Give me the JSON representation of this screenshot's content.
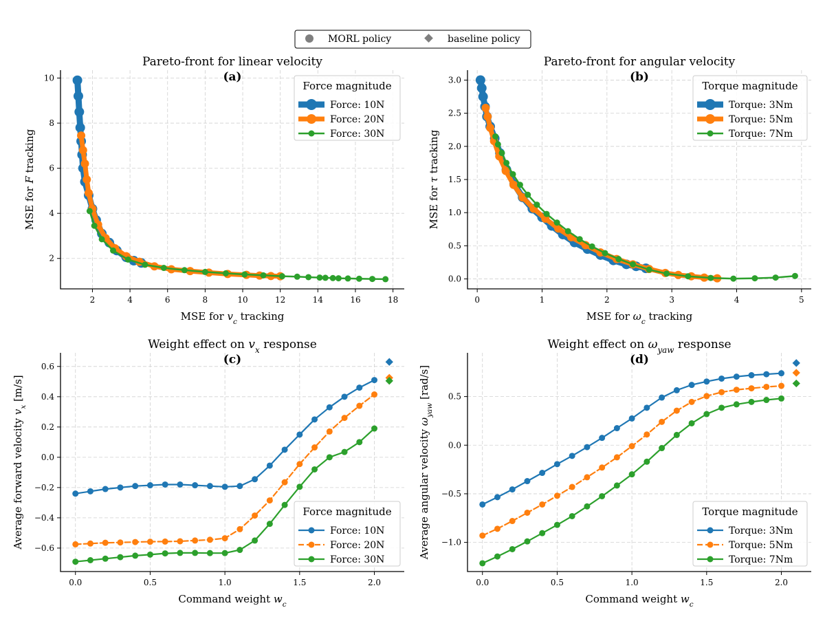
{
  "legend_top": {
    "items": [
      {
        "label": "MORL policy",
        "marker": "circle",
        "color": "#7f7f7f"
      },
      {
        "label": "baseline policy",
        "marker": "diamond",
        "color": "#7f7f7f"
      }
    ]
  },
  "chart_data": [
    {
      "id": "a",
      "type": "line",
      "title": "Pareto-front for linear velocity",
      "panel_letter": "(a)",
      "xlabel": "MSE for v_c tracking",
      "ylabel": "MSE for F tracking",
      "xlim": [
        0.3,
        18.6
      ],
      "ylim": [
        0.65,
        10.35
      ],
      "xticks": [
        2,
        4,
        6,
        8,
        10,
        12,
        14,
        16,
        18
      ],
      "yticks": [
        2,
        4,
        6,
        8,
        10
      ],
      "grid": true,
      "legend_title": "Force magnitude",
      "legend_position": "top-right",
      "series": [
        {
          "name": "Force: 10N",
          "color": "#1f77b4",
          "lw": 9,
          "ms": 7,
          "dash": false,
          "x": [
            1.2,
            1.25,
            1.3,
            1.35,
            1.4,
            1.45,
            1.5,
            1.6,
            1.8,
            2.0,
            2.2,
            2.5,
            2.9,
            3.3,
            3.8,
            4.2,
            4.6
          ],
          "y": [
            9.9,
            9.2,
            8.5,
            7.8,
            7.2,
            6.6,
            6.0,
            5.4,
            4.8,
            4.2,
            3.7,
            3.1,
            2.7,
            2.35,
            2.05,
            1.9,
            1.8
          ]
        },
        {
          "name": "Force: 20N",
          "color": "#ff7f0e",
          "lw": 7,
          "ms": 6,
          "dash": false,
          "x": [
            1.4,
            1.5,
            1.6,
            1.7,
            1.8,
            2.0,
            2.3,
            2.7,
            3.2,
            3.8,
            4.5,
            5.3,
            6.2,
            7.2,
            8.2,
            9.2,
            10.2,
            10.9,
            11.5,
            12.0
          ],
          "y": [
            7.45,
            6.8,
            6.2,
            5.5,
            4.9,
            4.2,
            3.5,
            2.9,
            2.45,
            2.1,
            1.85,
            1.65,
            1.52,
            1.44,
            1.37,
            1.31,
            1.27,
            1.24,
            1.22,
            1.21
          ]
        },
        {
          "name": "Force: 30N",
          "color": "#2ca02c",
          "lw": 2.5,
          "ms": 4.5,
          "dash": false,
          "x": [
            1.85,
            2.1,
            2.5,
            3.1,
            3.9,
            4.8,
            5.8,
            6.9,
            8.0,
            9.1,
            10.1,
            11.1,
            12.1,
            12.9,
            13.5,
            14.1,
            14.4,
            14.8,
            15.1,
            15.6,
            16.2,
            16.9,
            17.6
          ],
          "y": [
            4.1,
            3.45,
            2.85,
            2.35,
            1.95,
            1.72,
            1.58,
            1.48,
            1.4,
            1.34,
            1.29,
            1.25,
            1.21,
            1.19,
            1.17,
            1.15,
            1.14,
            1.13,
            1.12,
            1.11,
            1.1,
            1.09,
            1.08
          ]
        }
      ]
    },
    {
      "id": "b",
      "type": "line",
      "title": "Pareto-front for angular velocity",
      "panel_letter": "(b)",
      "xlabel": "MSE for ω_c tracking",
      "ylabel": "MSE for τ tracking",
      "xlim": [
        -0.15,
        5.15
      ],
      "ylim": [
        -0.15,
        3.15
      ],
      "xticks": [
        0,
        1,
        2,
        3,
        4,
        5
      ],
      "yticks": [
        0.0,
        0.5,
        1.0,
        1.5,
        2.0,
        2.5,
        3.0
      ],
      "ytick_decimals": 1,
      "grid": true,
      "legend_title": "Torque magnitude",
      "legend_position": "top-right",
      "series": [
        {
          "name": "Torque: 3Nm",
          "color": "#1f77b4",
          "lw": 9,
          "ms": 7,
          "dash": false,
          "x": [
            0.05,
            0.07,
            0.09,
            0.12,
            0.15,
            0.2,
            0.27,
            0.35,
            0.45,
            0.57,
            0.7,
            0.85,
            1.0,
            1.15,
            1.32,
            1.5,
            1.7,
            1.9,
            2.1,
            2.3,
            2.45,
            2.6
          ],
          "y": [
            3.0,
            2.88,
            2.75,
            2.6,
            2.45,
            2.3,
            2.12,
            1.9,
            1.65,
            1.43,
            1.23,
            1.06,
            0.93,
            0.8,
            0.67,
            0.55,
            0.45,
            0.36,
            0.28,
            0.22,
            0.19,
            0.16
          ]
        },
        {
          "name": "Torque: 5Nm",
          "color": "#ff7f0e",
          "lw": 7,
          "ms": 6,
          "dash": false,
          "x": [
            0.13,
            0.16,
            0.2,
            0.26,
            0.34,
            0.44,
            0.56,
            0.7,
            0.87,
            1.05,
            1.25,
            1.45,
            1.67,
            1.9,
            2.15,
            2.4,
            2.65,
            2.9,
            3.1,
            3.3,
            3.5,
            3.7
          ],
          "y": [
            2.58,
            2.45,
            2.28,
            2.08,
            1.85,
            1.63,
            1.42,
            1.23,
            1.06,
            0.91,
            0.76,
            0.63,
            0.51,
            0.4,
            0.3,
            0.22,
            0.15,
            0.09,
            0.06,
            0.04,
            0.02,
            0.01
          ]
        },
        {
          "name": "Torque: 7Nm",
          "color": "#2ca02c",
          "lw": 2.5,
          "ms": 4.5,
          "dash": false,
          "x": [
            0.28,
            0.32,
            0.38,
            0.45,
            0.55,
            0.66,
            0.78,
            0.92,
            1.07,
            1.23,
            1.4,
            1.58,
            1.77,
            1.97,
            2.18,
            2.4,
            2.65,
            2.92,
            3.25,
            3.6,
            3.95,
            4.28,
            4.6,
            4.9
          ],
          "y": [
            2.15,
            2.03,
            1.9,
            1.75,
            1.58,
            1.42,
            1.27,
            1.12,
            0.98,
            0.85,
            0.72,
            0.6,
            0.49,
            0.39,
            0.3,
            0.22,
            0.14,
            0.08,
            0.04,
            0.015,
            0.005,
            0.01,
            0.02,
            0.045
          ]
        }
      ]
    },
    {
      "id": "c",
      "type": "line",
      "title": "Weight effect on v_x response",
      "panel_letter": "(c)",
      "xlabel": "Command weight w_c",
      "ylabel": "Average forward velocity v_x [m/s]",
      "xlim": [
        -0.1,
        2.2
      ],
      "ylim": [
        -0.755,
        0.69
      ],
      "xticks": [
        0.0,
        0.5,
        1.0,
        1.5,
        2.0
      ],
      "xtick_decimals": 1,
      "yticks": [
        -0.6,
        -0.4,
        -0.2,
        0.0,
        0.2,
        0.4,
        0.6
      ],
      "ytick_decimals": 1,
      "grid": true,
      "legend_title": "Force magnitude",
      "legend_position": "bottom-right",
      "x": [
        0.0,
        0.1,
        0.2,
        0.3,
        0.4,
        0.5,
        0.6,
        0.7,
        0.8,
        0.9,
        1.0,
        1.1,
        1.2,
        1.3,
        1.4,
        1.5,
        1.6,
        1.7,
        1.8,
        1.9,
        2.0
      ],
      "series": [
        {
          "name": "Force: 10N",
          "color": "#1f77b4",
          "lw": 2.2,
          "ms": 4.5,
          "dash": false,
          "values": [
            -0.24,
            -0.225,
            -0.21,
            -0.2,
            -0.19,
            -0.185,
            -0.18,
            -0.18,
            -0.185,
            -0.19,
            -0.195,
            -0.19,
            -0.145,
            -0.055,
            0.05,
            0.15,
            0.25,
            0.33,
            0.4,
            0.46,
            0.51
          ],
          "baseline": 0.63
        },
        {
          "name": "Force: 20N",
          "color": "#ff7f0e",
          "lw": 2.2,
          "ms": 4.5,
          "dash": true,
          "values": [
            -0.575,
            -0.57,
            -0.565,
            -0.563,
            -0.56,
            -0.558,
            -0.557,
            -0.555,
            -0.55,
            -0.545,
            -0.535,
            -0.475,
            -0.385,
            -0.285,
            -0.165,
            -0.045,
            0.065,
            0.17,
            0.26,
            0.34,
            0.415
          ],
          "baseline": 0.525
        },
        {
          "name": "Force: 30N",
          "color": "#2ca02c",
          "lw": 2.2,
          "ms": 4.5,
          "dash": false,
          "values": [
            -0.69,
            -0.68,
            -0.67,
            -0.66,
            -0.65,
            -0.643,
            -0.635,
            -0.632,
            -0.632,
            -0.633,
            -0.633,
            -0.612,
            -0.55,
            -0.44,
            -0.315,
            -0.195,
            -0.08,
            0.0,
            0.035,
            0.1,
            0.19
          ],
          "baseline": 0.505
        }
      ]
    },
    {
      "id": "d",
      "type": "line",
      "title": "Weight effect on ω_yaw response",
      "panel_letter": "(d)",
      "xlabel": "Command weight w_c",
      "ylabel": "Average angular velocity ω_yaw [rad/s]",
      "xlim": [
        -0.1,
        2.2
      ],
      "ylim": [
        -1.3,
        0.95
      ],
      "xticks": [
        0.0,
        0.5,
        1.0,
        1.5,
        2.0
      ],
      "xtick_decimals": 1,
      "yticks": [
        -1.0,
        -0.5,
        0.0,
        0.5
      ],
      "ytick_decimals": 1,
      "grid": true,
      "legend_title": "Torque magnitude",
      "legend_position": "bottom-right",
      "x": [
        0.0,
        0.1,
        0.2,
        0.3,
        0.4,
        0.5,
        0.6,
        0.7,
        0.8,
        0.9,
        1.0,
        1.1,
        1.2,
        1.3,
        1.4,
        1.5,
        1.6,
        1.7,
        1.8,
        1.9,
        2.0
      ],
      "series": [
        {
          "name": "Torque: 3Nm",
          "color": "#1f77b4",
          "lw": 2.2,
          "ms": 4.5,
          "dash": false,
          "values": [
            -0.61,
            -0.535,
            -0.455,
            -0.37,
            -0.285,
            -0.195,
            -0.11,
            -0.02,
            0.075,
            0.175,
            0.275,
            0.385,
            0.49,
            0.565,
            0.62,
            0.655,
            0.685,
            0.705,
            0.72,
            0.73,
            0.74
          ],
          "baseline": 0.845
        },
        {
          "name": "Torque: 5Nm",
          "color": "#ff7f0e",
          "lw": 2.2,
          "ms": 4.5,
          "dash": true,
          "values": [
            -0.93,
            -0.86,
            -0.78,
            -0.695,
            -0.61,
            -0.52,
            -0.43,
            -0.33,
            -0.23,
            -0.125,
            -0.01,
            0.11,
            0.24,
            0.355,
            0.445,
            0.505,
            0.545,
            0.57,
            0.585,
            0.6,
            0.61
          ],
          "baseline": 0.745
        },
        {
          "name": "Torque: 7Nm",
          "color": "#2ca02c",
          "lw": 2.2,
          "ms": 4.5,
          "dash": false,
          "values": [
            -1.215,
            -1.145,
            -1.07,
            -0.99,
            -0.905,
            -0.82,
            -0.73,
            -0.63,
            -0.525,
            -0.415,
            -0.3,
            -0.17,
            -0.03,
            0.105,
            0.225,
            0.32,
            0.385,
            0.42,
            0.445,
            0.465,
            0.48
          ],
          "baseline": 0.635
        }
      ]
    }
  ]
}
